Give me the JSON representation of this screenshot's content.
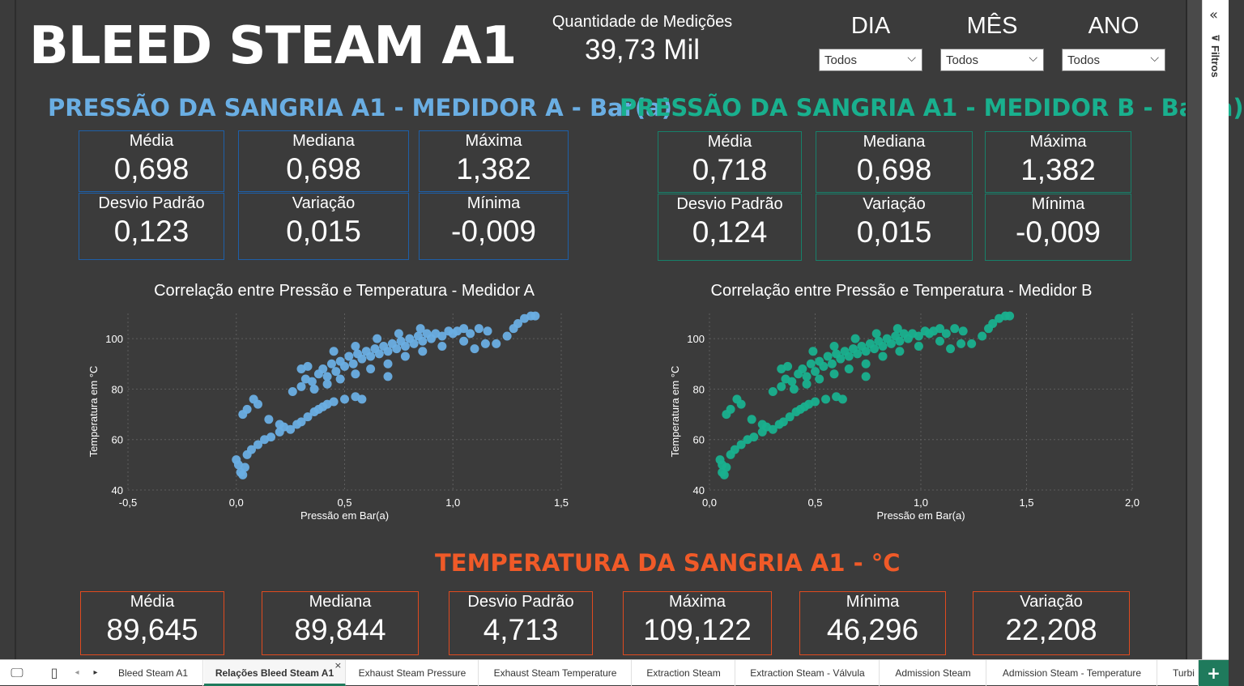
{
  "header": {
    "title": "BLEED STEAM A1",
    "qty_label": "Quantidade de Medições",
    "qty_value": "39,73 Mil"
  },
  "slicers": [
    {
      "label": "DIA",
      "value": "Todos"
    },
    {
      "label": "MÊS",
      "value": "Todos"
    },
    {
      "label": "ANO",
      "value": "Todos"
    }
  ],
  "filter_pane": {
    "label": "Filtros"
  },
  "meter_a": {
    "title": "PRESSÃO DA SANGRIA A1 - MEDIDOR A - Bar(a)",
    "color": "#6aaee3",
    "cards": [
      {
        "label": "Média",
        "value": "0,698"
      },
      {
        "label": "Mediana",
        "value": "0,698"
      },
      {
        "label": "Máxima",
        "value": "1,382"
      },
      {
        "label": "Desvio Padrão",
        "value": "0,123"
      },
      {
        "label": "Variação",
        "value": "0,015"
      },
      {
        "label": "Mínima",
        "value": "-0,009"
      }
    ]
  },
  "meter_b": {
    "title": "PRESSÃO DA SANGRIA A1 - MEDIDOR B - Bar(a)",
    "color": "#19b08e",
    "cards": [
      {
        "label": "Média",
        "value": "0,718"
      },
      {
        "label": "Mediana",
        "value": "0,698"
      },
      {
        "label": "Máxima",
        "value": "1,382"
      },
      {
        "label": "Desvio Padrão",
        "value": "0,124"
      },
      {
        "label": "Variação",
        "value": "0,015"
      },
      {
        "label": "Mínima",
        "value": "-0,009"
      }
    ]
  },
  "temperature": {
    "title": "TEMPERATURA DA SANGRIA A1 - °C",
    "color": "#f05a28",
    "cards": [
      {
        "label": "Média",
        "value": "89,645"
      },
      {
        "label": "Mediana",
        "value": "89,844"
      },
      {
        "label": "Desvio Padrão",
        "value": "4,713"
      },
      {
        "label": "Máxima",
        "value": "109,122"
      },
      {
        "label": "Mínima",
        "value": "46,296"
      },
      {
        "label": "Variação",
        "value": "22,208"
      }
    ]
  },
  "chart_data": [
    {
      "type": "scatter",
      "title": "Correlação entre Pressão e Temperatura - Medidor A",
      "xlabel": "Pressão em Bar(a)",
      "ylabel": "Temperatura em °C",
      "xlim": [
        -0.5,
        1.5
      ],
      "ylim": [
        40,
        110
      ],
      "xticks": [
        -0.5,
        0.0,
        0.5,
        1.0,
        1.5
      ],
      "xtick_labels": [
        "-0,5",
        "0,0",
        "0,5",
        "1,0",
        "1,5"
      ],
      "yticks": [
        40,
        60,
        80,
        100
      ],
      "ytick_labels": [
        "40",
        "60",
        "80",
        "100"
      ],
      "grid": true,
      "color": "#6aaee3",
      "series": [
        {
          "points": [
            [
              0.0,
              52
            ],
            [
              0.01,
              50
            ],
            [
              0.02,
              47
            ],
            [
              0.03,
              46
            ],
            [
              0.04,
              49
            ],
            [
              0.05,
              54
            ],
            [
              0.07,
              56
            ],
            [
              0.1,
              58
            ],
            [
              0.13,
              60
            ],
            [
              0.16,
              61
            ],
            [
              0.2,
              63
            ],
            [
              0.22,
              65
            ],
            [
              0.25,
              64
            ],
            [
              0.28,
              66
            ],
            [
              0.3,
              67
            ],
            [
              0.33,
              69
            ],
            [
              0.36,
              71
            ],
            [
              0.38,
              72
            ],
            [
              0.4,
              73
            ],
            [
              0.42,
              74
            ],
            [
              0.45,
              75
            ],
            [
              0.5,
              76
            ],
            [
              0.55,
              77
            ],
            [
              0.58,
              76
            ],
            [
              0.03,
              70
            ],
            [
              0.05,
              72
            ],
            [
              0.08,
              76
            ],
            [
              0.1,
              74
            ],
            [
              0.15,
              68
            ],
            [
              0.2,
              66
            ],
            [
              0.26,
              79
            ],
            [
              0.3,
              81
            ],
            [
              0.32,
              84
            ],
            [
              0.35,
              83
            ],
            [
              0.38,
              86
            ],
            [
              0.4,
              88
            ],
            [
              0.42,
              85
            ],
            [
              0.44,
              90
            ],
            [
              0.46,
              87
            ],
            [
              0.48,
              91
            ],
            [
              0.5,
              89
            ],
            [
              0.52,
              93
            ],
            [
              0.54,
              90
            ],
            [
              0.56,
              94
            ],
            [
              0.58,
              92
            ],
            [
              0.6,
              95
            ],
            [
              0.62,
              93
            ],
            [
              0.64,
              96
            ],
            [
              0.66,
              94
            ],
            [
              0.68,
              97
            ],
            [
              0.7,
              95
            ],
            [
              0.72,
              98
            ],
            [
              0.74,
              96
            ],
            [
              0.76,
              99
            ],
            [
              0.78,
              97
            ],
            [
              0.8,
              100
            ],
            [
              0.82,
              98
            ],
            [
              0.84,
              101
            ],
            [
              0.86,
              99
            ],
            [
              0.88,
              102
            ],
            [
              0.9,
              100
            ],
            [
              0.92,
              102
            ],
            [
              0.95,
              101
            ],
            [
              0.98,
              103
            ],
            [
              1.0,
              102
            ],
            [
              1.02,
              103
            ],
            [
              1.05,
              104
            ],
            [
              1.08,
              102
            ],
            [
              1.12,
              104
            ],
            [
              1.16,
              103
            ],
            [
              0.36,
              80
            ],
            [
              0.42,
              82
            ],
            [
              0.48,
              84
            ],
            [
              0.55,
              86
            ],
            [
              0.62,
              88
            ],
            [
              0.7,
              90
            ],
            [
              0.78,
              93
            ],
            [
              0.86,
              95
            ],
            [
              0.95,
              97
            ],
            [
              1.05,
              99
            ],
            [
              0.45,
              95
            ],
            [
              0.55,
              97
            ],
            [
              0.65,
              100
            ],
            [
              0.75,
              102
            ],
            [
              0.85,
              104
            ],
            [
              0.33,
              89
            ],
            [
              0.7,
              85
            ],
            [
              1.1,
              96
            ],
            [
              1.2,
              98
            ],
            [
              1.25,
              101
            ],
            [
              1.28,
              104
            ],
            [
              1.3,
              106
            ],
            [
              1.33,
              108
            ],
            [
              1.36,
              109
            ],
            [
              1.38,
              109
            ],
            [
              1.15,
              98
            ],
            [
              0.3,
              88
            ]
          ]
        }
      ]
    },
    {
      "type": "scatter",
      "title": "Correlação entre Pressão e Temperatura - Medidor B",
      "xlabel": "Pressão em Bar(a)",
      "ylabel": "Temperatura em °C",
      "xlim": [
        0.0,
        2.0
      ],
      "ylim": [
        40,
        110
      ],
      "xticks": [
        0.0,
        0.5,
        1.0,
        1.5,
        2.0
      ],
      "xtick_labels": [
        "0,0",
        "0,5",
        "1,0",
        "1,5",
        "2,0"
      ],
      "yticks": [
        40,
        60,
        80,
        100
      ],
      "ytick_labels": [
        "40",
        "60",
        "80",
        "100"
      ],
      "grid": true,
      "color": "#19b08e",
      "series": [
        {
          "points": [
            [
              0.05,
              52
            ],
            [
              0.06,
              50
            ],
            [
              0.06,
              47
            ],
            [
              0.07,
              46
            ],
            [
              0.08,
              49
            ],
            [
              0.1,
              54
            ],
            [
              0.12,
              56
            ],
            [
              0.15,
              58
            ],
            [
              0.18,
              60
            ],
            [
              0.21,
              61
            ],
            [
              0.25,
              63
            ],
            [
              0.27,
              65
            ],
            [
              0.3,
              64
            ],
            [
              0.33,
              66
            ],
            [
              0.35,
              67
            ],
            [
              0.38,
              69
            ],
            [
              0.41,
              71
            ],
            [
              0.43,
              72
            ],
            [
              0.45,
              73
            ],
            [
              0.47,
              74
            ],
            [
              0.5,
              75
            ],
            [
              0.55,
              76
            ],
            [
              0.6,
              77
            ],
            [
              0.63,
              76
            ],
            [
              0.08,
              70
            ],
            [
              0.1,
              72
            ],
            [
              0.13,
              76
            ],
            [
              0.15,
              74
            ],
            [
              0.2,
              68
            ],
            [
              0.25,
              66
            ],
            [
              0.3,
              79
            ],
            [
              0.34,
              81
            ],
            [
              0.36,
              84
            ],
            [
              0.39,
              83
            ],
            [
              0.42,
              86
            ],
            [
              0.44,
              88
            ],
            [
              0.46,
              85
            ],
            [
              0.48,
              90
            ],
            [
              0.5,
              87
            ],
            [
              0.52,
              91
            ],
            [
              0.54,
              89
            ],
            [
              0.56,
              93
            ],
            [
              0.58,
              90
            ],
            [
              0.6,
              94
            ],
            [
              0.62,
              92
            ],
            [
              0.64,
              95
            ],
            [
              0.66,
              93
            ],
            [
              0.68,
              96
            ],
            [
              0.7,
              94
            ],
            [
              0.72,
              97
            ],
            [
              0.74,
              95
            ],
            [
              0.76,
              98
            ],
            [
              0.78,
              96
            ],
            [
              0.8,
              99
            ],
            [
              0.82,
              97
            ],
            [
              0.84,
              100
            ],
            [
              0.86,
              98
            ],
            [
              0.88,
              101
            ],
            [
              0.9,
              99
            ],
            [
              0.92,
              102
            ],
            [
              0.94,
              100
            ],
            [
              0.96,
              102
            ],
            [
              0.99,
              101
            ],
            [
              1.02,
              103
            ],
            [
              1.04,
              102
            ],
            [
              1.06,
              103
            ],
            [
              1.09,
              104
            ],
            [
              1.12,
              102
            ],
            [
              1.16,
              104
            ],
            [
              1.2,
              103
            ],
            [
              0.4,
              80
            ],
            [
              0.46,
              82
            ],
            [
              0.52,
              84
            ],
            [
              0.59,
              86
            ],
            [
              0.66,
              88
            ],
            [
              0.74,
              90
            ],
            [
              0.82,
              93
            ],
            [
              0.9,
              95
            ],
            [
              0.99,
              97
            ],
            [
              1.09,
              99
            ],
            [
              0.49,
              95
            ],
            [
              0.59,
              97
            ],
            [
              0.69,
              100
            ],
            [
              0.79,
              102
            ],
            [
              0.89,
              104
            ],
            [
              0.37,
              89
            ],
            [
              0.74,
              85
            ],
            [
              1.14,
              96
            ],
            [
              1.24,
              98
            ],
            [
              1.29,
              101
            ],
            [
              1.32,
              104
            ],
            [
              1.34,
              106
            ],
            [
              1.37,
              108
            ],
            [
              1.4,
              109
            ],
            [
              1.42,
              109
            ],
            [
              1.19,
              98
            ],
            [
              0.34,
              88
            ]
          ]
        }
      ]
    }
  ],
  "tabs": [
    {
      "label": "Bleed Steam A1",
      "active": false
    },
    {
      "label": "Relações Bleed Steam A1",
      "active": true
    },
    {
      "label": "Exhaust Steam Pressure",
      "active": false
    },
    {
      "label": "Exhaust Steam Temperature",
      "active": false
    },
    {
      "label": "Extraction Steam",
      "active": false
    },
    {
      "label": "Extraction Steam - Válvula",
      "active": false
    },
    {
      "label": "Admission Steam",
      "active": false
    },
    {
      "label": "Admission Steam - Temperature",
      "active": false
    },
    {
      "label": "Turbi",
      "active": false
    }
  ],
  "icons": {
    "collapse": "double-chevron-left-icon",
    "funnel": "funnel-icon",
    "desktop": "desktop-view-icon",
    "mobile": "mobile-view-icon",
    "add": "add-page-icon"
  }
}
